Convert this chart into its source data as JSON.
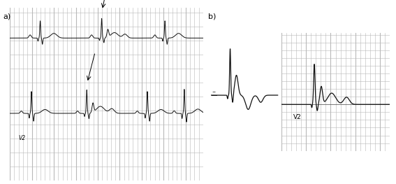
{
  "fig_width": 5.67,
  "fig_height": 2.63,
  "dpi": 100,
  "bg_color": "#ffffff",
  "grid_color": "#b8b8b8",
  "ecg_color": "#111111",
  "label_a": "a)",
  "label_b": "b)",
  "label_v2_a": "V2",
  "label_v2_b": "V2",
  "grid_bg": "#d4d4d4",
  "grid_minor_alpha": 0.7,
  "grid_major_alpha": 1.0
}
